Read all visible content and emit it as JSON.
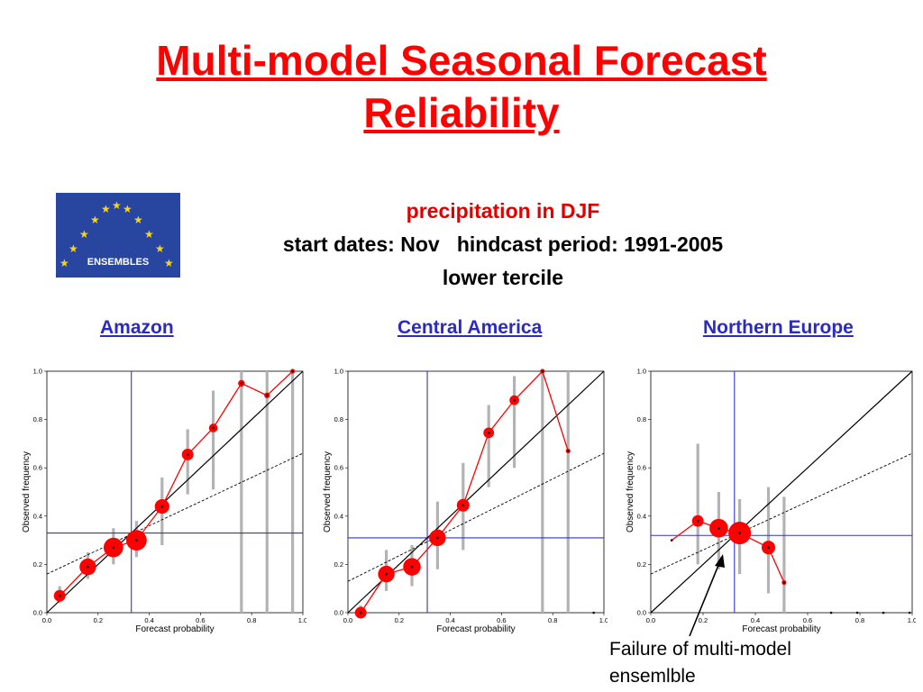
{
  "slide": {
    "title_line1": "Multi-model Seasonal Forecast",
    "title_line2": "Reliability",
    "logo_text": "ENSEMBLES",
    "variable": "precipitation in DJF",
    "start_dates": "start dates: Nov",
    "hindcast": "hindcast period: 1991-2005",
    "tercile": "lower tercile",
    "note_line1": "Failure of multi-model",
    "note_line2": "ensemlble"
  },
  "colors": {
    "title": "#ff0000",
    "region_link": "#2b2bbf",
    "markers": "#ff0000",
    "climatology": "#3333cc",
    "error_bars": "#b3b3b3"
  },
  "chart_data": [
    {
      "type": "scatter",
      "title": "Amazon",
      "xlabel": "Forecast probability",
      "ylabel": "Observed frequency",
      "xlim": [
        0,
        1
      ],
      "ylim": [
        0,
        1
      ],
      "xticks": [
        "0.0",
        "0.2",
        "0.4",
        "0.6",
        "0.8",
        "1.0"
      ],
      "yticks": [
        "0.0",
        "0.2",
        "0.4",
        "0.6",
        "0.8",
        "1.0"
      ],
      "climatology": 0.33,
      "resolution_line": {
        "intercept": 0.16,
        "slope": 0.5
      },
      "points": [
        {
          "x": 0.05,
          "y": 0.07,
          "size": 0.45
        },
        {
          "x": 0.16,
          "y": 0.19,
          "size": 0.7
        },
        {
          "x": 0.26,
          "y": 0.27,
          "size": 0.85
        },
        {
          "x": 0.35,
          "y": 0.3,
          "size": 0.9
        },
        {
          "x": 0.45,
          "y": 0.44,
          "size": 0.6
        },
        {
          "x": 0.55,
          "y": 0.655,
          "size": 0.45
        },
        {
          "x": 0.65,
          "y": 0.765,
          "size": 0.3
        },
        {
          "x": 0.76,
          "y": 0.95,
          "size": 0.2
        },
        {
          "x": 0.86,
          "y": 0.9,
          "size": 0.15
        },
        {
          "x": 0.96,
          "y": 1.0,
          "size": 0.1
        }
      ],
      "error_bars": [
        {
          "x": 0.05,
          "low": 0.04,
          "high": 0.11
        },
        {
          "x": 0.16,
          "low": 0.14,
          "high": 0.25
        },
        {
          "x": 0.26,
          "low": 0.2,
          "high": 0.35
        },
        {
          "x": 0.35,
          "low": 0.23,
          "high": 0.38
        },
        {
          "x": 0.45,
          "low": 0.28,
          "high": 0.56
        },
        {
          "x": 0.55,
          "low": 0.49,
          "high": 0.76
        },
        {
          "x": 0.65,
          "low": 0.51,
          "high": 0.92
        },
        {
          "x": 0.76,
          "low": 0.0,
          "high": 1.0
        },
        {
          "x": 0.86,
          "low": 0.0,
          "high": 1.0
        },
        {
          "x": 0.96,
          "low": 0.0,
          "high": 1.0
        }
      ]
    },
    {
      "type": "scatter",
      "title": "Central America",
      "xlabel": "Forecast probability",
      "ylabel": "Observed frequency",
      "xlim": [
        0,
        1
      ],
      "ylim": [
        0,
        1
      ],
      "xticks": [
        "0.0",
        "0.2",
        "0.4",
        "0.6",
        "0.8",
        "1.0"
      ],
      "yticks": [
        "0.0",
        "0.2",
        "0.4",
        "0.6",
        "0.8",
        "1.0"
      ],
      "climatology": 0.31,
      "resolution_line": {
        "intercept": 0.13,
        "slope": 0.53
      },
      "points": [
        {
          "x": 0.05,
          "y": 0.0,
          "size": 0.45
        },
        {
          "x": 0.15,
          "y": 0.16,
          "size": 0.7
        },
        {
          "x": 0.25,
          "y": 0.19,
          "size": 0.75
        },
        {
          "x": 0.35,
          "y": 0.31,
          "size": 0.7
        },
        {
          "x": 0.45,
          "y": 0.445,
          "size": 0.5
        },
        {
          "x": 0.55,
          "y": 0.745,
          "size": 0.4
        },
        {
          "x": 0.65,
          "y": 0.88,
          "size": 0.35
        },
        {
          "x": 0.76,
          "y": 1.0,
          "size": 0.1
        },
        {
          "x": 0.86,
          "y": 0.67,
          "size": 0.1
        },
        {
          "x": 0.96,
          "y": 0.0,
          "size": 0.05
        }
      ],
      "error_bars": [
        {
          "x": 0.05,
          "low": 0.0,
          "high": 0.03
        },
        {
          "x": 0.15,
          "low": 0.09,
          "high": 0.26
        },
        {
          "x": 0.25,
          "low": 0.11,
          "high": 0.28
        },
        {
          "x": 0.35,
          "low": 0.18,
          "high": 0.46
        },
        {
          "x": 0.45,
          "low": 0.26,
          "high": 0.62
        },
        {
          "x": 0.55,
          "low": 0.52,
          "high": 0.86
        },
        {
          "x": 0.65,
          "low": 0.6,
          "high": 0.98
        },
        {
          "x": 0.76,
          "low": 0.0,
          "high": 1.0
        },
        {
          "x": 0.86,
          "low": 0.0,
          "high": 1.0
        }
      ]
    },
    {
      "type": "scatter",
      "title": "Northern Europe",
      "xlabel": "Forecast probability",
      "ylabel": "Observed frequency",
      "xlim": [
        0,
        1
      ],
      "ylim": [
        0,
        1
      ],
      "xticks": [
        "0.0",
        "0.2",
        "0.4",
        "0.6",
        "0.8",
        "1.0"
      ],
      "yticks": [
        "0.0",
        "0.2",
        "0.4",
        "0.6",
        "0.8",
        "1.0"
      ],
      "climatology": 0.32,
      "resolution_line": {
        "intercept": 0.16,
        "slope": 0.5
      },
      "points": [
        {
          "x": 0.08,
          "y": 0.3,
          "size": 0.05
        },
        {
          "x": 0.18,
          "y": 0.38,
          "size": 0.45
        },
        {
          "x": 0.26,
          "y": 0.35,
          "size": 0.8
        },
        {
          "x": 0.34,
          "y": 0.33,
          "size": 1.0
        },
        {
          "x": 0.45,
          "y": 0.27,
          "size": 0.55
        },
        {
          "x": 0.51,
          "y": 0.125,
          "size": 0.1
        },
        {
          "x": 0.69,
          "y": 0.0,
          "size": 0.05
        },
        {
          "x": 0.79,
          "y": 0.0,
          "size": 0.05
        },
        {
          "x": 0.89,
          "y": 0.0,
          "size": 0.05
        },
        {
          "x": 0.99,
          "y": 0.0,
          "size": 0.05
        }
      ],
      "error_bars": [
        {
          "x": 0.18,
          "low": 0.2,
          "high": 0.7
        },
        {
          "x": 0.26,
          "low": 0.18,
          "high": 0.5
        },
        {
          "x": 0.34,
          "low": 0.16,
          "high": 0.47
        },
        {
          "x": 0.45,
          "low": 0.08,
          "high": 0.52
        },
        {
          "x": 0.51,
          "low": 0.0,
          "high": 0.48
        }
      ]
    }
  ]
}
